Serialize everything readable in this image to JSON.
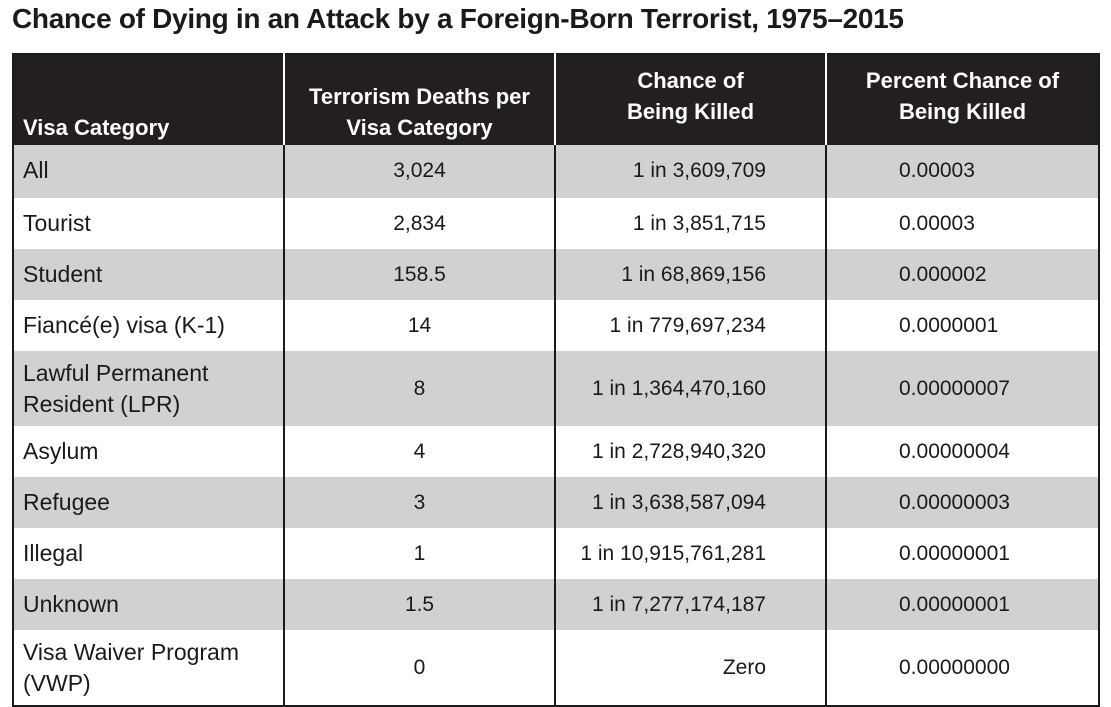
{
  "title": "Chance of Dying in an Attack by a Foreign-Born Terrorist, 1975–2015",
  "table": {
    "headers": {
      "visa_category": "Visa Category",
      "deaths_line1": "Terrorism Deaths per",
      "deaths_line2": "Visa Category",
      "chance_line1": "Chance of",
      "chance_line2": "Being Killed",
      "percent_line1": "Percent Chance of",
      "percent_line2": "Being Killed"
    },
    "rows": [
      {
        "category": "All",
        "deaths": "3,024",
        "chance": "1 in 3,609,709",
        "percent": "0.00003"
      },
      {
        "category": "Tourist",
        "deaths": "2,834",
        "chance": "1 in 3,851,715",
        "percent": "0.00003"
      },
      {
        "category": "Student",
        "deaths": "158.5",
        "chance": "1 in 68,869,156",
        "percent": "0.000002"
      },
      {
        "category": "Fiancé(e) visa (K-1)",
        "deaths": "14",
        "chance": "1 in 779,697,234",
        "percent": "0.0000001"
      },
      {
        "category_line1": "Lawful Permanent",
        "category_line2": "Resident (LPR)",
        "deaths": "8",
        "chance": "1 in 1,364,470,160",
        "percent": "0.00000007"
      },
      {
        "category": "Asylum",
        "deaths": "4",
        "chance": "1 in 2,728,940,320",
        "percent": "0.00000004"
      },
      {
        "category": "Refugee",
        "deaths": "3",
        "chance": "1 in 3,638,587,094",
        "percent": "0.00000003"
      },
      {
        "category": "Illegal",
        "deaths": "1",
        "chance": "1 in 10,915,761,281",
        "percent": "0.00000001"
      },
      {
        "category": "Unknown",
        "deaths": "1.5",
        "chance": "1 in 7,277,174,187",
        "percent": "0.00000001"
      },
      {
        "category_line1": "Visa Waiver Program",
        "category_line2": "(VWP)",
        "deaths": "0",
        "chance": "Zero",
        "percent": "0.00000000"
      }
    ]
  }
}
